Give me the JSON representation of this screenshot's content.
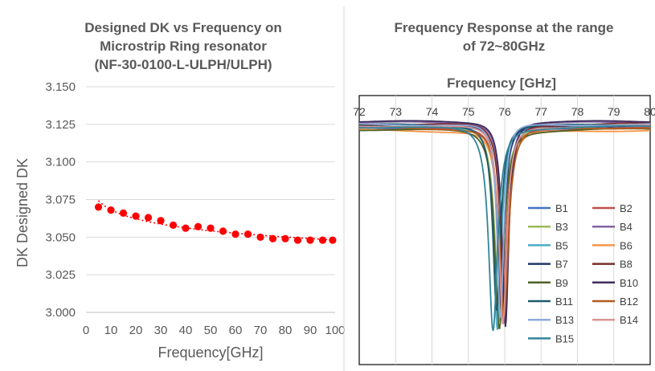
{
  "chart_data": [
    {
      "type": "scatter",
      "title_lines": [
        "Designed DK vs Frequency on",
        "Microstrip Ring resonator",
        "(NF-30-0100-L-ULPH/ULPH)"
      ],
      "xlabel": "Frequency[GHz]",
      "ylabel": "DK Designed DK",
      "xlim": [
        0,
        100
      ],
      "ylim": [
        3.0,
        3.15
      ],
      "x_ticks": [
        "0",
        "10",
        "20",
        "30",
        "40",
        "50",
        "60",
        "70",
        "80",
        "90",
        "100"
      ],
      "y_ticks": [
        "3.000",
        "3.025",
        "3.050",
        "3.075",
        "3.100",
        "3.125",
        "3.150"
      ],
      "grid": "horizontal",
      "marker_color": "#ff0000",
      "trendline": "dotted",
      "series": [
        {
          "x": [
            5,
            10,
            15,
            20,
            25,
            30,
            35,
            40,
            45,
            50,
            55,
            60,
            65,
            70,
            75,
            80,
            85,
            90,
            95,
            99
          ],
          "y": [
            3.07,
            3.068,
            3.066,
            3.064,
            3.063,
            3.061,
            3.058,
            3.056,
            3.057,
            3.056,
            3.054,
            3.052,
            3.052,
            3.05,
            3.049,
            3.049,
            3.048,
            3.048,
            3.048,
            3.048
          ]
        }
      ]
    },
    {
      "type": "line",
      "title_lines": [
        "Frequency Response at the range",
        "of 72~80GHz"
      ],
      "xlabel": "Frequency [GHz]",
      "xlim": [
        72,
        80
      ],
      "x_ticks": [
        "72",
        "73",
        "74",
        "75",
        "76",
        "77",
        "78",
        "79",
        "80"
      ],
      "x_axis_position": "top",
      "grid": "vertical",
      "legend_placement": "center-right",
      "series": [
        {
          "name": "B1",
          "color": "#4472c4",
          "dip": 75.9,
          "base": 0.118
        },
        {
          "name": "B2",
          "color": "#c0504d",
          "dip": 75.93,
          "base": 0.122
        },
        {
          "name": "B3",
          "color": "#9bbb59",
          "dip": 75.86,
          "base": 0.114
        },
        {
          "name": "B4",
          "color": "#8064a2",
          "dip": 76.0,
          "base": 0.1
        },
        {
          "name": "B5",
          "color": "#4bacc6",
          "dip": 75.8,
          "base": 0.109
        },
        {
          "name": "B6",
          "color": "#f79646",
          "dip": 75.96,
          "base": 0.128
        },
        {
          "name": "B7",
          "color": "#1f3864",
          "dip": 75.9,
          "base": 0.112
        },
        {
          "name": "B8",
          "color": "#7b2c2c",
          "dip": 76.0,
          "base": 0.104
        },
        {
          "name": "B9",
          "color": "#4f6228",
          "dip": 75.85,
          "base": 0.125
        },
        {
          "name": "B10",
          "color": "#3f2d5c",
          "dip": 76.02,
          "base": 0.096
        },
        {
          "name": "B11",
          "color": "#1f5c6b",
          "dip": 75.78,
          "base": 0.108
        },
        {
          "name": "B12",
          "color": "#b35a1f",
          "dip": 75.98,
          "base": 0.118
        },
        {
          "name": "B13",
          "color": "#8eaadb",
          "dip": 75.88,
          "base": 0.106
        },
        {
          "name": "B14",
          "color": "#d99694",
          "dip": 75.95,
          "base": 0.112
        },
        {
          "name": "B15",
          "color": "#31859c",
          "dip": 75.68,
          "base": 0.115
        }
      ]
    }
  ]
}
